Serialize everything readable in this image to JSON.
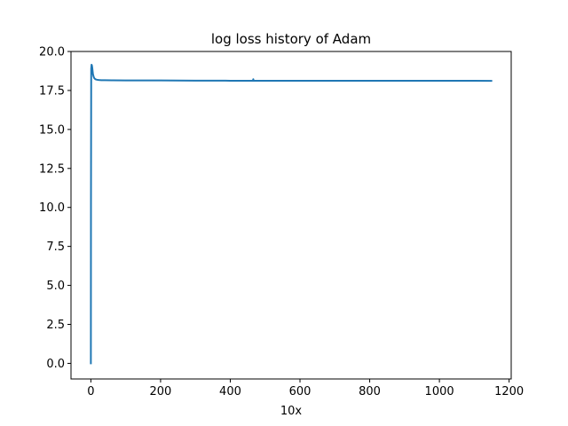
{
  "chart_data": {
    "type": "line",
    "title": "log loss history of Adam",
    "xlabel": "10x",
    "ylabel": "",
    "xlim": [
      -57,
      1206
    ],
    "ylim": [
      -1.0,
      20.0
    ],
    "xticks": [
      0,
      200,
      400,
      600,
      800,
      1000,
      1200
    ],
    "xtick_labels": [
      "0",
      "200",
      "400",
      "600",
      "800",
      "1000",
      "1200"
    ],
    "yticks": [
      0.0,
      2.5,
      5.0,
      7.5,
      10.0,
      12.5,
      15.0,
      17.5,
      20.0
    ],
    "ytick_labels": [
      "0.0",
      "2.5",
      "5.0",
      "7.5",
      "10.0",
      "12.5",
      "15.0",
      "17.5",
      "20.0"
    ],
    "grid": false,
    "series": [
      {
        "color": "#1f77b4",
        "x": [
          0,
          0.3,
          1,
          2,
          3,
          4,
          5,
          6,
          8,
          10,
          13,
          17,
          22,
          30,
          40,
          60,
          100,
          150,
          200,
          250,
          300,
          350,
          400,
          450,
          465,
          466,
          467,
          470,
          500,
          550,
          600,
          650,
          700,
          750,
          800,
          850,
          900,
          950,
          1000,
          1050,
          1100,
          1149
        ],
        "y": [
          0.0,
          10.0,
          18.9,
          19.15,
          19.1,
          18.95,
          18.75,
          18.55,
          18.38,
          18.28,
          18.22,
          18.19,
          18.17,
          18.16,
          18.155,
          18.15,
          18.145,
          18.14,
          18.14,
          18.135,
          18.13,
          18.13,
          18.125,
          18.125,
          18.12,
          18.22,
          18.12,
          18.12,
          18.12,
          18.12,
          18.12,
          18.12,
          18.12,
          18.12,
          18.12,
          18.12,
          18.12,
          18.12,
          18.12,
          18.12,
          18.12,
          18.115
        ]
      }
    ]
  }
}
